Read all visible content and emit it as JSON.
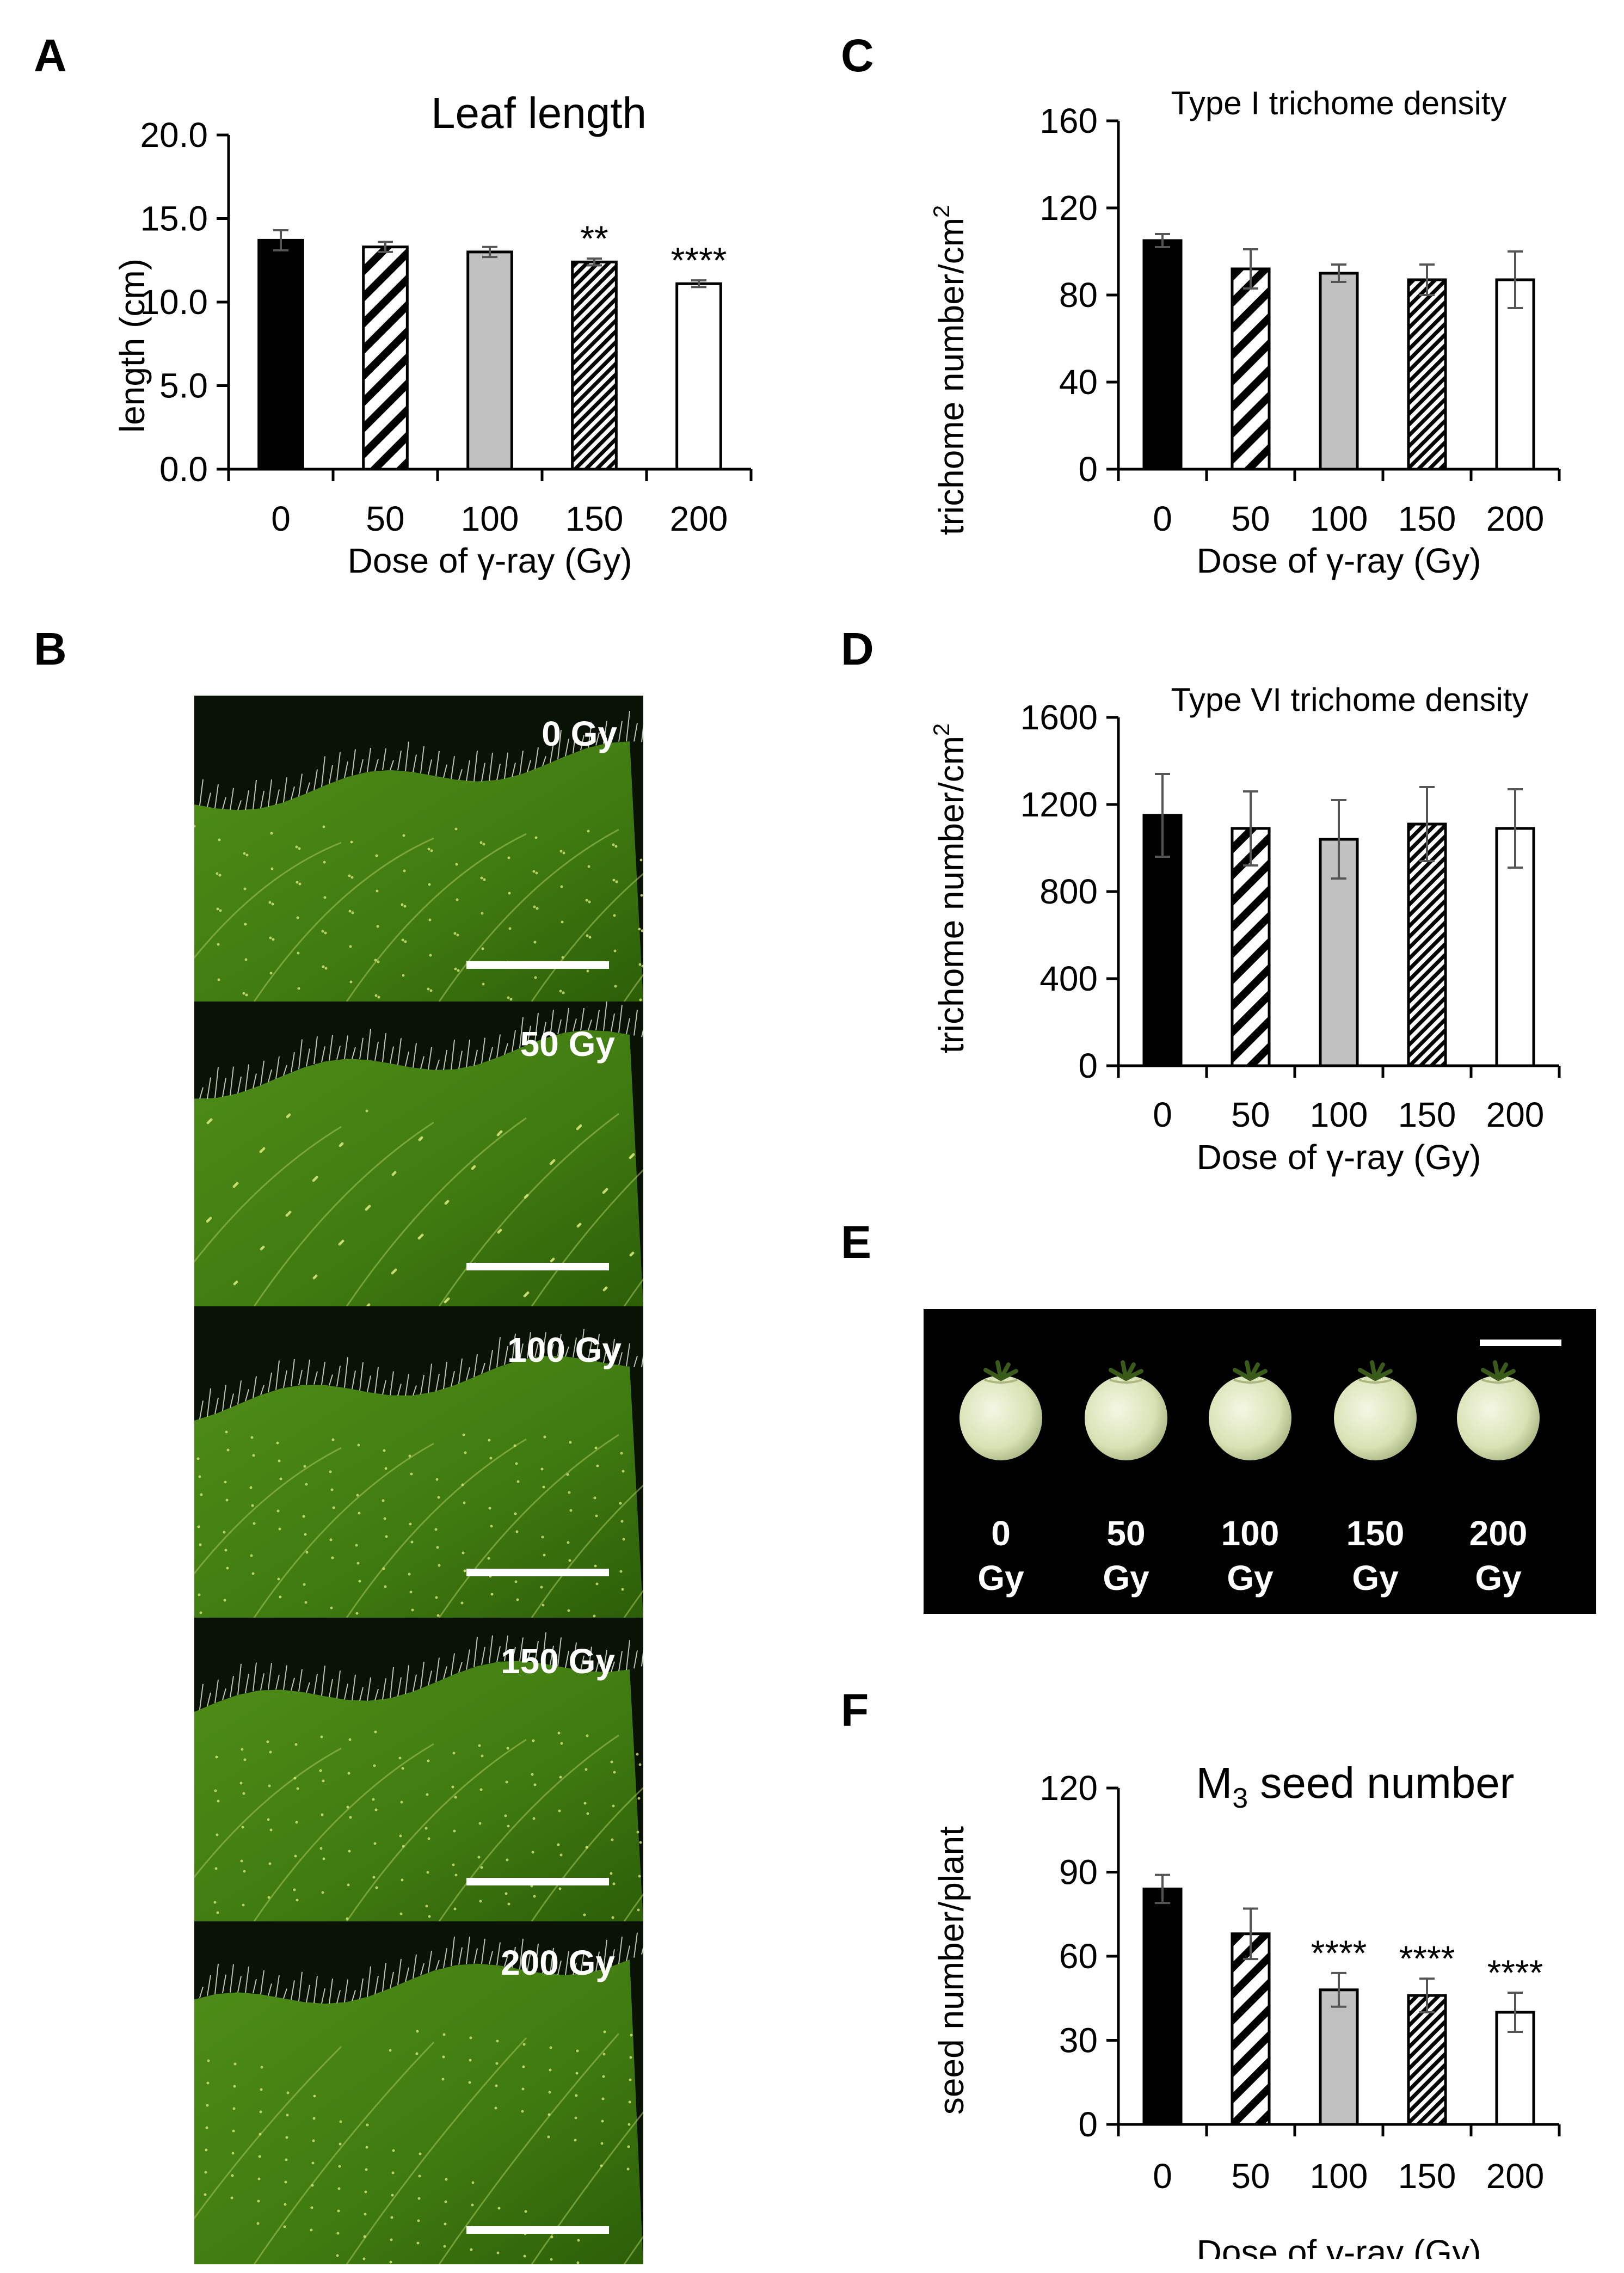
{
  "panels": {
    "A": "A",
    "B": "B",
    "C": "C",
    "D": "D",
    "E": "E",
    "F": "F"
  },
  "colors": {
    "bar0": "#000000",
    "bar100": "#c0c0c0",
    "bar200": "#ffffff",
    "leaf": "#3d7a12",
    "leafDark": "#1e3d06",
    "photoBg": "#000000",
    "fruit": "#dfe8c0"
  },
  "leaf_photos": {
    "labels": [
      "0 Gy",
      "50 Gy",
      "100 Gy",
      "150 Gy",
      "200 Gy"
    ]
  },
  "fruit_photo": {
    "labels": [
      {
        "dose": "0",
        "unit": "Gy"
      },
      {
        "dose": "50",
        "unit": "Gy"
      },
      {
        "dose": "100",
        "unit": "Gy"
      },
      {
        "dose": "150",
        "unit": "Gy"
      },
      {
        "dose": "200",
        "unit": "Gy"
      }
    ]
  },
  "chart_data": [
    {
      "id": "A",
      "type": "bar",
      "title": "Leaf length",
      "ylabel": "length (cm)",
      "xlabel": "Dose of γ-ray (Gy)",
      "categories": [
        "0",
        "50",
        "100",
        "150",
        "200"
      ],
      "values": [
        13.7,
        13.3,
        13.0,
        12.4,
        11.1
      ],
      "errors": [
        0.6,
        0.3,
        0.3,
        0.2,
        0.2
      ],
      "significance": [
        "",
        "",
        "",
        "**",
        "****"
      ],
      "ylim": [
        0,
        20
      ],
      "yticks": [
        "0.0",
        "5.0",
        "10.0",
        "15.0",
        "20.0"
      ],
      "patterns": [
        "solid-black",
        "wide-hatch",
        "solid-gray",
        "dense-hatch",
        "solid-white"
      ]
    },
    {
      "id": "C",
      "type": "bar",
      "title": "Type I trichome density",
      "ylabel": "trichome number/cm",
      "ylabel_sup": "2",
      "xlabel": "Dose of γ-ray (Gy)",
      "categories": [
        "0",
        "50",
        "100",
        "150",
        "200"
      ],
      "values": [
        105,
        92,
        90,
        87,
        87
      ],
      "errors": [
        3,
        9,
        4,
        7,
        13
      ],
      "significance": [
        "",
        "",
        "",
        "",
        ""
      ],
      "ylim": [
        0,
        160
      ],
      "yticks": [
        "0",
        "40",
        "80",
        "120",
        "160"
      ],
      "patterns": [
        "solid-black",
        "wide-hatch",
        "solid-gray",
        "dense-hatch",
        "solid-white"
      ]
    },
    {
      "id": "D",
      "type": "bar",
      "title": "Type VI trichome density",
      "ylabel": "trichome number/cm",
      "ylabel_sup": "2",
      "xlabel": "Dose of γ-ray (Gy)",
      "categories": [
        "0",
        "50",
        "100",
        "150",
        "200"
      ],
      "values": [
        1150,
        1090,
        1040,
        1110,
        1090
      ],
      "errors": [
        190,
        170,
        180,
        170,
        180
      ],
      "significance": [
        "",
        "",
        "",
        "",
        ""
      ],
      "ylim": [
        0,
        1600
      ],
      "yticks": [
        "0",
        "400",
        "800",
        "1200",
        "1600"
      ],
      "patterns": [
        "solid-black",
        "wide-hatch",
        "solid-gray",
        "dense-hatch",
        "solid-white"
      ]
    },
    {
      "id": "F",
      "type": "bar",
      "title": "M",
      "title_sub": "3",
      "title_rest": " seed number",
      "ylabel": "seed number/plant",
      "xlabel": "Dose of γ-ray (Gy)",
      "categories": [
        "0",
        "50",
        "100",
        "150",
        "200"
      ],
      "values": [
        84,
        68,
        48,
        46,
        40
      ],
      "errors": [
        5,
        9,
        6,
        6,
        7
      ],
      "significance": [
        "",
        "",
        "****",
        "****",
        "****"
      ],
      "ylim": [
        0,
        120
      ],
      "yticks": [
        "0",
        "30",
        "60",
        "90",
        "120"
      ],
      "patterns": [
        "solid-black",
        "wide-hatch",
        "solid-gray",
        "dense-hatch",
        "solid-white"
      ]
    }
  ]
}
